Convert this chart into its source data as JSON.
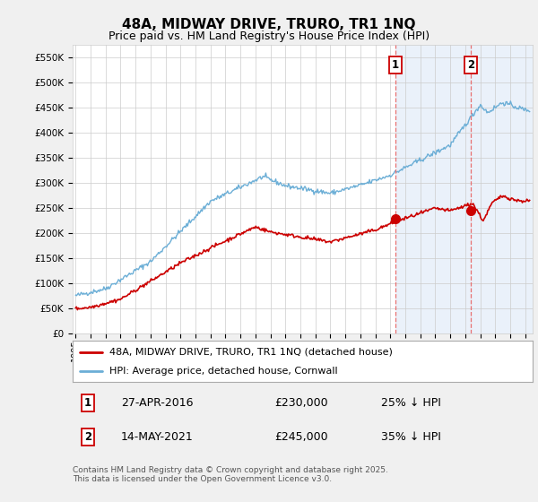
{
  "title": "48A, MIDWAY DRIVE, TRURO, TR1 1NQ",
  "subtitle": "Price paid vs. HM Land Registry's House Price Index (HPI)",
  "ylabel_ticks": [
    "£0",
    "£50K",
    "£100K",
    "£150K",
    "£200K",
    "£250K",
    "£300K",
    "£350K",
    "£400K",
    "£450K",
    "£500K",
    "£550K"
  ],
  "ytick_values": [
    0,
    50000,
    100000,
    150000,
    200000,
    250000,
    300000,
    350000,
    400000,
    450000,
    500000,
    550000
  ],
  "ylim": [
    0,
    575000
  ],
  "xlim_start": 1994.8,
  "xlim_end": 2025.5,
  "xticks": [
    1995,
    1996,
    1997,
    1998,
    1999,
    2000,
    2001,
    2002,
    2003,
    2004,
    2005,
    2006,
    2007,
    2008,
    2009,
    2010,
    2011,
    2012,
    2013,
    2014,
    2015,
    2016,
    2017,
    2018,
    2019,
    2020,
    2021,
    2022,
    2023,
    2024,
    2025
  ],
  "hpi_color": "#6baed6",
  "price_color": "#cc0000",
  "vline_color": "#e87070",
  "sale1_x": 2016.32,
  "sale1_y": 230000,
  "sale1_label": "1",
  "sale1_date": "27-APR-2016",
  "sale1_price": "£230,000",
  "sale1_note": "25% ↓ HPI",
  "sale2_x": 2021.37,
  "sale2_y": 245000,
  "sale2_label": "2",
  "sale2_date": "14-MAY-2021",
  "sale2_price": "£245,000",
  "sale2_note": "35% ↓ HPI",
  "legend_line1": "48A, MIDWAY DRIVE, TRURO, TR1 1NQ (detached house)",
  "legend_line2": "HPI: Average price, detached house, Cornwall",
  "footer": "Contains HM Land Registry data © Crown copyright and database right 2025.\nThis data is licensed under the Open Government Licence v3.0.",
  "bg_color": "#f0f0f0",
  "plot_bg": "#ffffff",
  "shade_color": "#dce8f8",
  "title_fontsize": 11,
  "subtitle_fontsize": 9
}
